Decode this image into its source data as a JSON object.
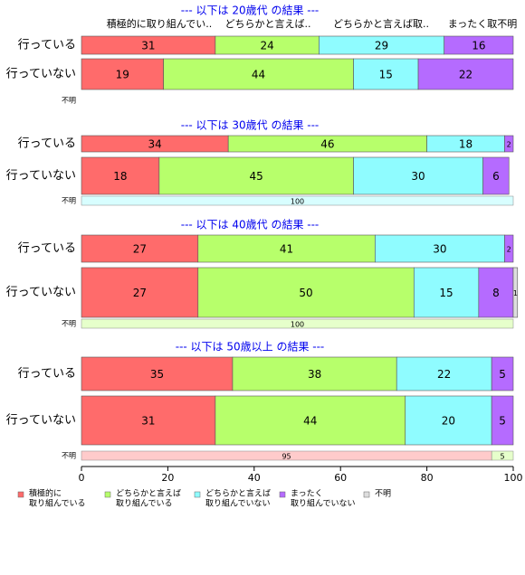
{
  "chart_data": {
    "type": "bar",
    "orientation": "horizontal-stacked",
    "xlim": [
      0,
      100
    ],
    "xticks": [
      "0",
      "20",
      "40",
      "60",
      "80",
      "100"
    ],
    "colors": {
      "積極的に取り組んでいる": "#ff6b6b",
      "どちらかと言えば取り組んでいる": "#b7ff6b",
      "どちらかと言えば取り組んでいない": "#8ffcff",
      "まったく取り組んでいない": "#b56bff",
      "不明": "#dddddd"
    },
    "header_labels": [
      "積極的に取り組んでい..",
      "どちらかと言えば..",
      "どちらかと言えば取..",
      "まったく取不明"
    ],
    "legend": [
      {
        "key": "積極的に取り組んでいる",
        "lines": [
          "積極的に",
          "取り組んでいる"
        ],
        "color": "#ff6b6b"
      },
      {
        "key": "どちらかと言えば取り組んでいる",
        "lines": [
          "どちらかと言えば",
          "取り組んでいる"
        ],
        "color": "#b7ff6b"
      },
      {
        "key": "どちらかと言えば取り組んでいない",
        "lines": [
          "どちらかと言えば",
          "取り組んでいない"
        ],
        "color": "#8ffcff"
      },
      {
        "key": "まったく取り組んでいない",
        "lines": [
          "まったく",
          "取り組んでいない"
        ],
        "color": "#b56bff"
      },
      {
        "key": "不明",
        "lines": [
          "不明"
        ],
        "color": "#dddddd"
      }
    ],
    "panels": [
      {
        "title": "--- 以下は 20歳代 の結果 ---",
        "rows": [
          {
            "label": "行っている",
            "values": [
              31,
              24,
              29,
              16,
              0
            ]
          },
          {
            "label": "行っていない",
            "values": [
              19,
              44,
              15,
              22,
              0
            ]
          }
        ],
        "unknown": {
          "label": "不明",
          "values": []
        }
      },
      {
        "title": "--- 以下は 30歳代 の結果 ---",
        "rows": [
          {
            "label": "行っている",
            "values": [
              34,
              46,
              18,
              2,
              0
            ]
          },
          {
            "label": "行っていない",
            "values": [
              18,
              45,
              30,
              6,
              0
            ]
          }
        ],
        "unknown": {
          "label": "不明",
          "values": [
            0,
            0,
            100,
            0,
            0
          ]
        }
      },
      {
        "title": "--- 以下は 40歳代 の結果 ---",
        "rows": [
          {
            "label": "行っている",
            "values": [
              27,
              41,
              30,
              2,
              0
            ]
          },
          {
            "label": "行っていない",
            "values": [
              27,
              50,
              15,
              8,
              1
            ]
          }
        ],
        "unknown": {
          "label": "不明",
          "values": [
            0,
            100,
            0,
            0,
            0
          ]
        }
      },
      {
        "title": "--- 以下は 50歳以上 の結果 ---",
        "rows": [
          {
            "label": "行っている",
            "values": [
              35,
              38,
              22,
              5,
              0
            ]
          },
          {
            "label": "行っていない",
            "values": [
              31,
              44,
              20,
              5,
              0
            ]
          }
        ],
        "unknown": {
          "label": "不明",
          "values": [
            95,
            5,
            0,
            0,
            0
          ]
        }
      }
    ]
  }
}
